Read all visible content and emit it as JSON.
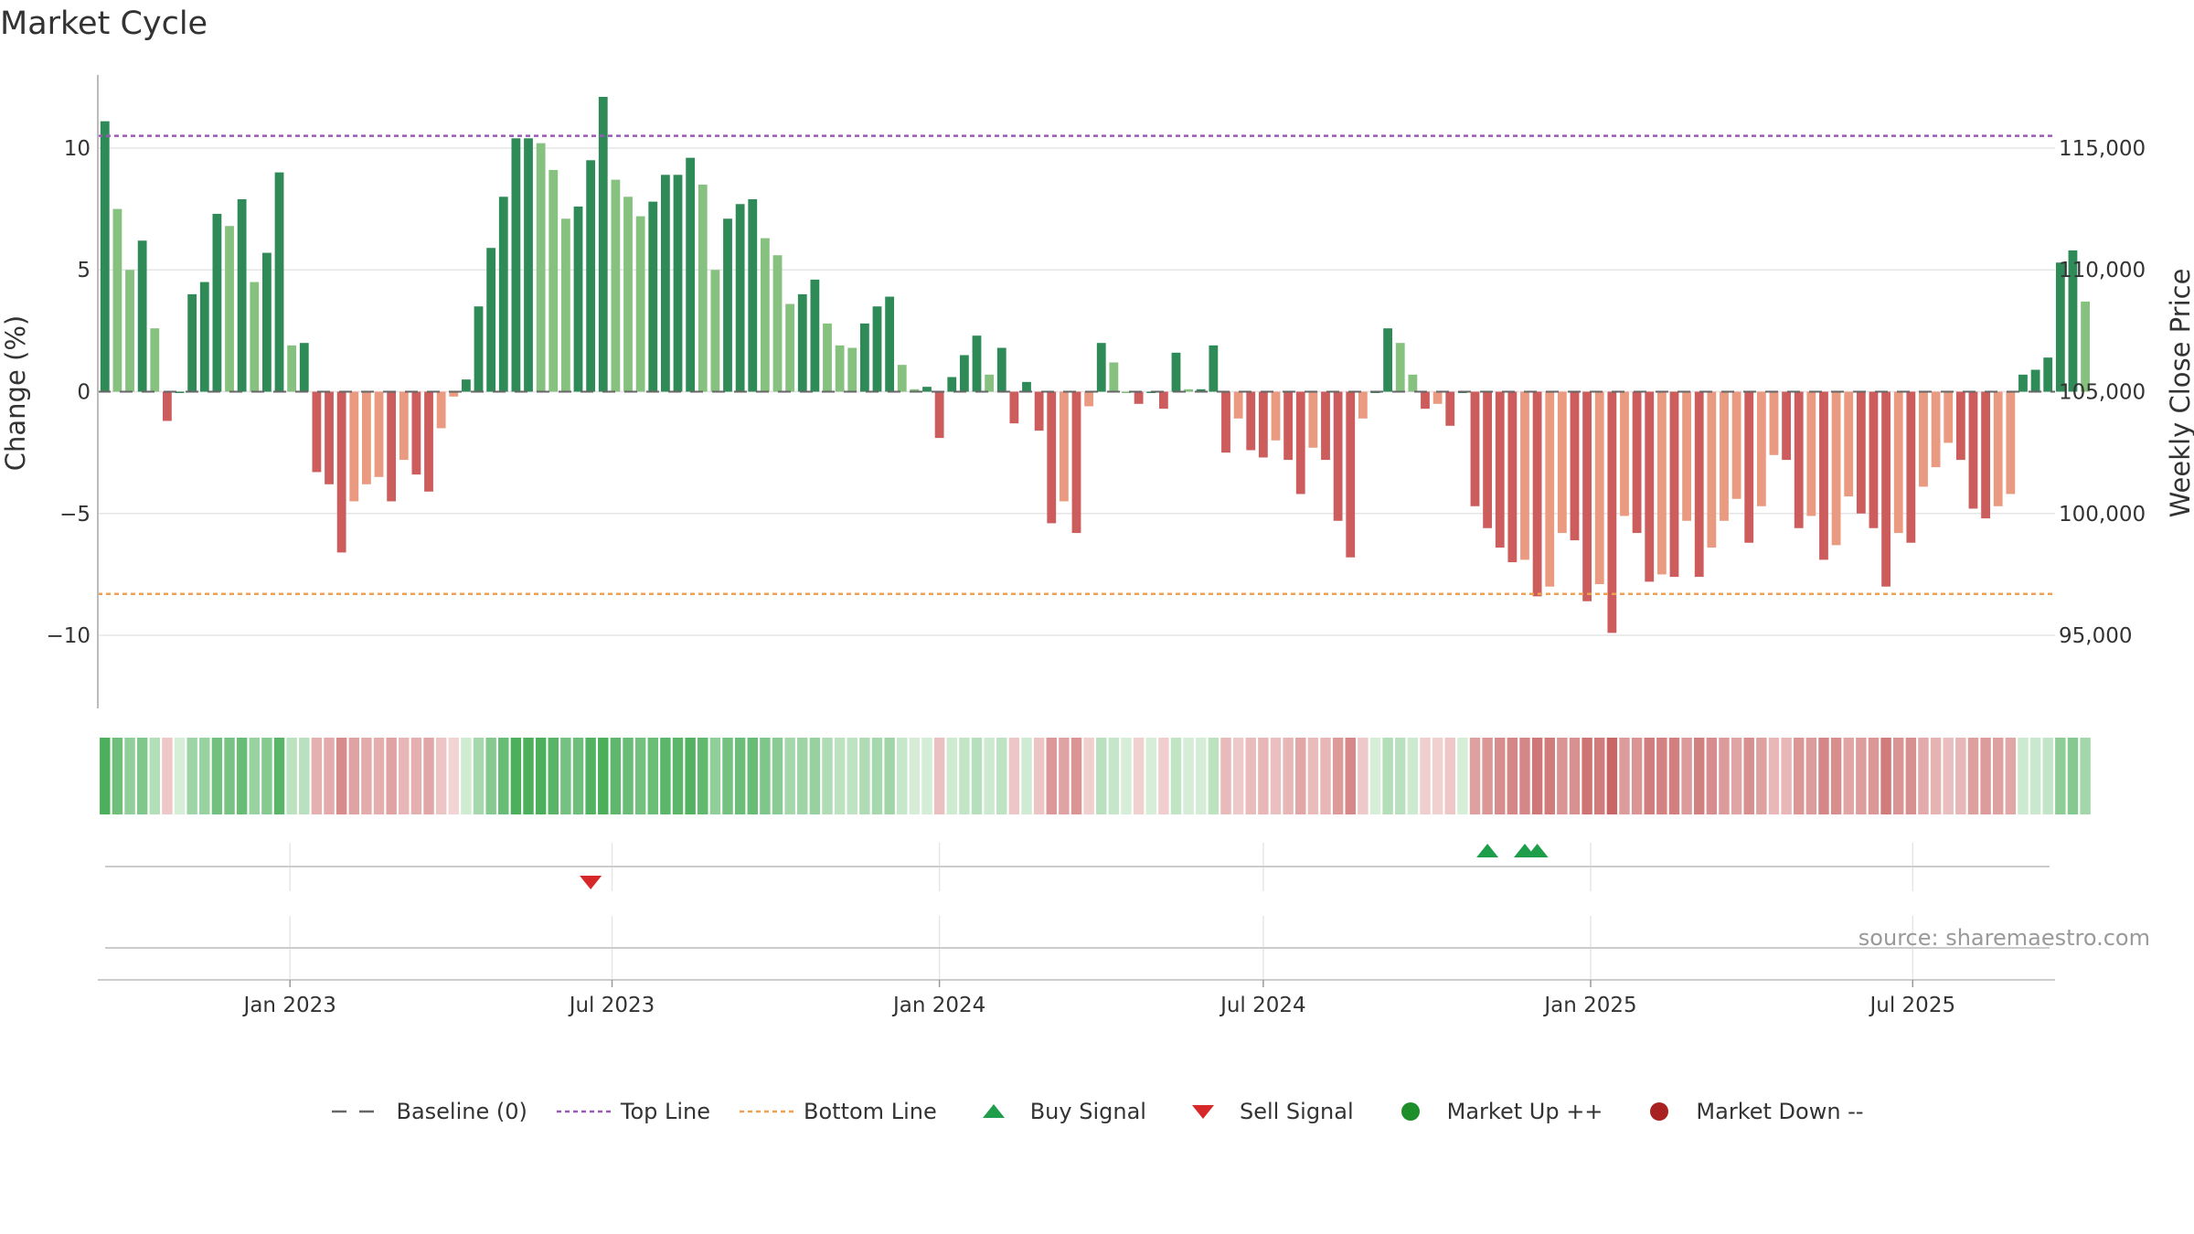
{
  "page": {
    "title": "Market Cycle"
  },
  "chart_data": {
    "type": "bar",
    "title": "Market Cycle",
    "y_label_left": "Change (%)",
    "y_label_right": "Weekly Close Price",
    "source": "source: sharemaestro.com",
    "x_start": "2022-09-19",
    "x_range": [
      "2022-09-15",
      "2025-09-19"
    ],
    "ylim_left": [
      -13,
      13
    ],
    "yticks_left": [
      {
        "v": 10,
        "label": "10"
      },
      {
        "v": 5,
        "label": "5"
      },
      {
        "v": 0,
        "label": "0"
      },
      {
        "v": -5,
        "label": "−5"
      },
      {
        "v": -10,
        "label": "−10"
      }
    ],
    "yticks_right": [
      "115,000",
      "110,000",
      "105,000",
      "100,000",
      "95,000"
    ],
    "xticks": [
      {
        "date": "2023-01-01",
        "label": "Jan 2023"
      },
      {
        "date": "2023-07-01",
        "label": "Jul 2023"
      },
      {
        "date": "2024-01-01",
        "label": "Jan 2024"
      },
      {
        "date": "2024-07-01",
        "label": "Jul 2024"
      },
      {
        "date": "2025-01-01",
        "label": "Jan 2025"
      },
      {
        "date": "2025-07-01",
        "label": "Jul 2025"
      }
    ],
    "top_line": 10.5,
    "bottom_line": -8.3,
    "weekly_change": [
      11.1,
      7.5,
      5.0,
      6.2,
      2.6,
      -1.2,
      0,
      4.0,
      4.5,
      7.3,
      6.8,
      7.9,
      4.5,
      5.7,
      9.0,
      1.9,
      2.0,
      -3.3,
      -3.8,
      -6.6,
      -4.5,
      -3.8,
      -3.5,
      -4.5,
      -2.8,
      -3.4,
      -4.1,
      -1.5,
      -0.2,
      0.5,
      3.5,
      5.9,
      8.0,
      10.4,
      10.4,
      10.2,
      9.1,
      7.1,
      7.6,
      9.5,
      12.1,
      8.7,
      8.0,
      7.2,
      7.8,
      8.9,
      8.9,
      9.6,
      8.5,
      5.0,
      7.1,
      7.7,
      7.9,
      6.3,
      5.6,
      3.6,
      4.0,
      4.6,
      2.8,
      1.9,
      1.8,
      2.8,
      3.5,
      3.9,
      1.1,
      0.1,
      0.2,
      -1.9,
      0.6,
      1.5,
      2.3,
      0.7,
      1.8,
      -1.3,
      0.4,
      -1.6,
      -5.4,
      -4.5,
      -5.8,
      -0.6,
      2.0,
      1.2,
      0,
      -0.5,
      0,
      -0.7,
      1.6,
      0.1,
      0.1,
      1.9,
      -2.5,
      -1.1,
      -2.4,
      -2.7,
      -2.0,
      -2.8,
      -4.2,
      -2.3,
      -2.8,
      -5.3,
      -6.8,
      -1.1,
      0,
      2.6,
      2.0,
      0.7,
      -0.7,
      -0.5,
      -1.4,
      0,
      -4.7,
      -5.6,
      -6.4,
      -7.0,
      -6.9,
      -8.4,
      -8.0,
      -5.8,
      -6.1,
      -8.6,
      -7.9,
      -9.9,
      -5.1,
      -5.8,
      -7.8,
      -7.5,
      -7.6,
      -5.3,
      -7.6,
      -6.4,
      -5.3,
      -4.4,
      -6.2,
      -4.7,
      -2.6,
      -2.8,
      -5.6,
      -5.1,
      -6.9,
      -6.3,
      -4.3,
      -5.0,
      -5.6,
      -8.0,
      -5.8,
      -6.2,
      -3.9,
      -3.1,
      -2.1,
      -2.8,
      -4.8,
      -5.2,
      -4.7,
      -4.2,
      0.7,
      0.9,
      1.4,
      5.3,
      5.8,
      3.7
    ],
    "signals": {
      "buy": [
        "2024-11-04",
        "2024-11-25",
        "2024-12-02"
      ],
      "sell": [
        "2023-06-19"
      ]
    },
    "legend": [
      {
        "label": "Baseline (0)",
        "symbol": "dash-gray"
      },
      {
        "label": "Top Line",
        "symbol": "dot-purple"
      },
      {
        "label": "Bottom Line",
        "symbol": "dot-orange"
      },
      {
        "label": "Buy Signal",
        "symbol": "triangle-up-green"
      },
      {
        "label": "Sell Signal",
        "symbol": "triangle-down-red"
      },
      {
        "label": "Market Up ++",
        "symbol": "circle-green"
      },
      {
        "label": "Market Down --",
        "symbol": "circle-red"
      }
    ]
  },
  "colors": {
    "up_dark": "#2e8b57",
    "up_light": "#86c17f",
    "down_dark": "#cd5c5c",
    "down_light": "#e99a80",
    "top_line": "#9b59b6",
    "bottom_line": "#f0a050",
    "buy": "#1e9e4a",
    "sell": "#d62828",
    "market_up": "#1e8e2a",
    "market_down": "#a82222",
    "grid": "#e6e6e6",
    "axis": "#bbbbbb"
  }
}
